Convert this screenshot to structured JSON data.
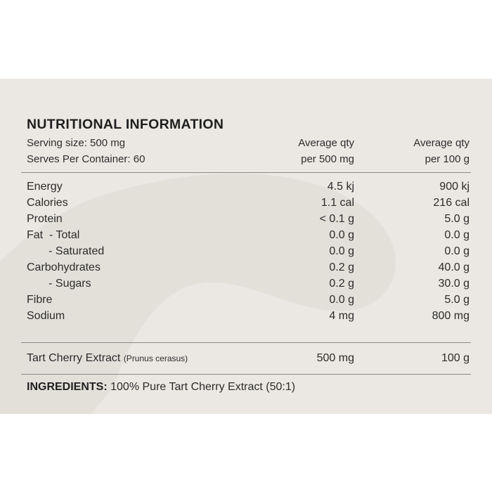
{
  "title": "NUTRITIONAL INFORMATION",
  "header": {
    "serving_size": "Serving size: 500 mg",
    "serves_per_container": "Serves Per Container: 60",
    "col1_line1": "Average qty",
    "col1_line2": "per 500 mg",
    "col2_line1": "Average qty",
    "col2_line2": "per 100 g"
  },
  "rows": [
    {
      "label": "Energy",
      "per_serving": "4.5 kj",
      "per_100g": "900 kj"
    },
    {
      "label": "Calories",
      "per_serving": "1.1 cal",
      "per_100g": "216 cal"
    },
    {
      "label": "Protein",
      "per_serving": "< 0.1 g",
      "per_100g": "5.0 g"
    },
    {
      "label": "Fat  - Total",
      "per_serving": "0.0 g",
      "per_100g": "0.0 g"
    },
    {
      "label": "       - Saturated",
      "per_serving": "0.0 g",
      "per_100g": "0.0 g"
    },
    {
      "label": "Carbohydrates",
      "per_serving": "0.2 g",
      "per_100g": "40.0 g"
    },
    {
      "label": "       - Sugars",
      "per_serving": "0.2 g",
      "per_100g": "30.0 g"
    },
    {
      "label": "Fibre",
      "per_serving": "0.0 g",
      "per_100g": "5.0 g"
    },
    {
      "label": "Sodium",
      "per_serving": "4 mg",
      "per_100g": "800 mg"
    }
  ],
  "extract": {
    "name": "Tart Cherry Extract",
    "latin": "(Prunus cerasus)",
    "per_serving": "500 mg",
    "per_100g": "100 g"
  },
  "ingredients": {
    "label": "INGREDIENTS:",
    "text": "100% Pure Tart Cherry Extract (50:1)"
  },
  "colors": {
    "panel_bg": "#ebe8e3",
    "watermark": "#e3e0da",
    "rule": "#8d8a85",
    "text": "#2b2b2b"
  }
}
